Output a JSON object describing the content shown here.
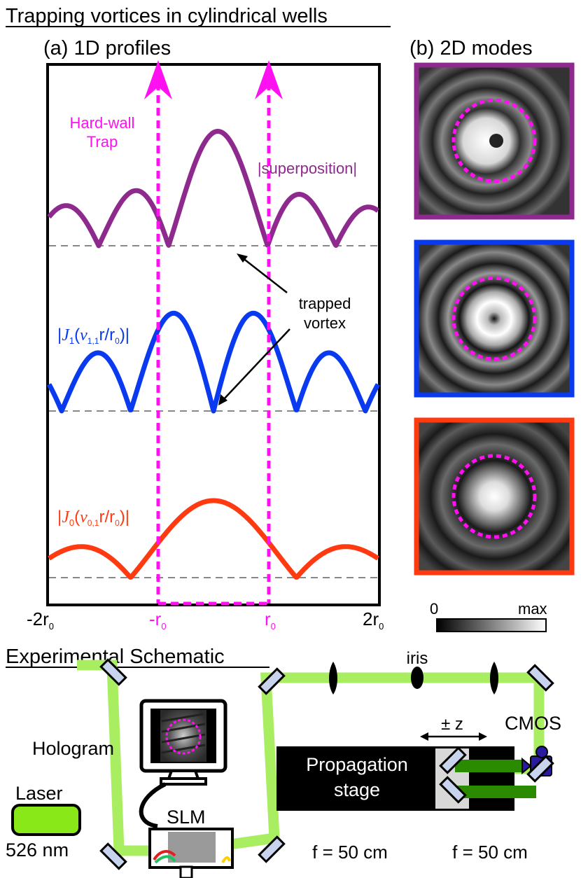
{
  "title_top": "Trapping vortices in cylindrical wells",
  "panel_a": {
    "label": "(a) 1D profiles",
    "hard_wall": [
      "Hard-wall",
      "Trap"
    ],
    "superposition": "|superposition|",
    "trapped": [
      "trapped",
      "vortex"
    ],
    "j1": {
      "bar": "|",
      "fn": "J",
      "order": "1",
      "open": "(",
      "nu": "ν",
      "nu_sub": "1,1",
      "rest": "r/r",
      "rsub": "0",
      "close": ")|"
    },
    "j0": {
      "bar": "|",
      "fn": "J",
      "order": "0",
      "open": "(",
      "nu": "ν",
      "nu_sub": "0,1",
      "rest": "r/r",
      "rsub": "0",
      "close": ")|"
    },
    "xticks": [
      {
        "main": "-2r",
        "sub": "0"
      },
      {
        "main": "-r",
        "sub": "0"
      },
      {
        "main": "r",
        "sub": "0"
      },
      {
        "main": "2r",
        "sub": "0"
      }
    ]
  },
  "panel_b": {
    "label": "(b) 2D modes",
    "colorbar": {
      "min": "0",
      "max": "max"
    }
  },
  "schematic": {
    "title": "Experimental Schematic",
    "hologram": "Hologram",
    "laser": "Laser",
    "wavelength": "526 nm",
    "slm": "SLM",
    "pm_z": "± z",
    "cmos": "CMOS",
    "stage": [
      "Propagation",
      "stage"
    ],
    "iris": "iris",
    "lens1": "f = 50 cm",
    "lens2": "f = 50 cm"
  },
  "colors": {
    "superposition": "#8e2a8e",
    "j1": "#0a3af0",
    "j0": "#ff3a10",
    "trap": "#ff10f0",
    "beam": "#a8ee60",
    "laser": "#88e818"
  }
}
